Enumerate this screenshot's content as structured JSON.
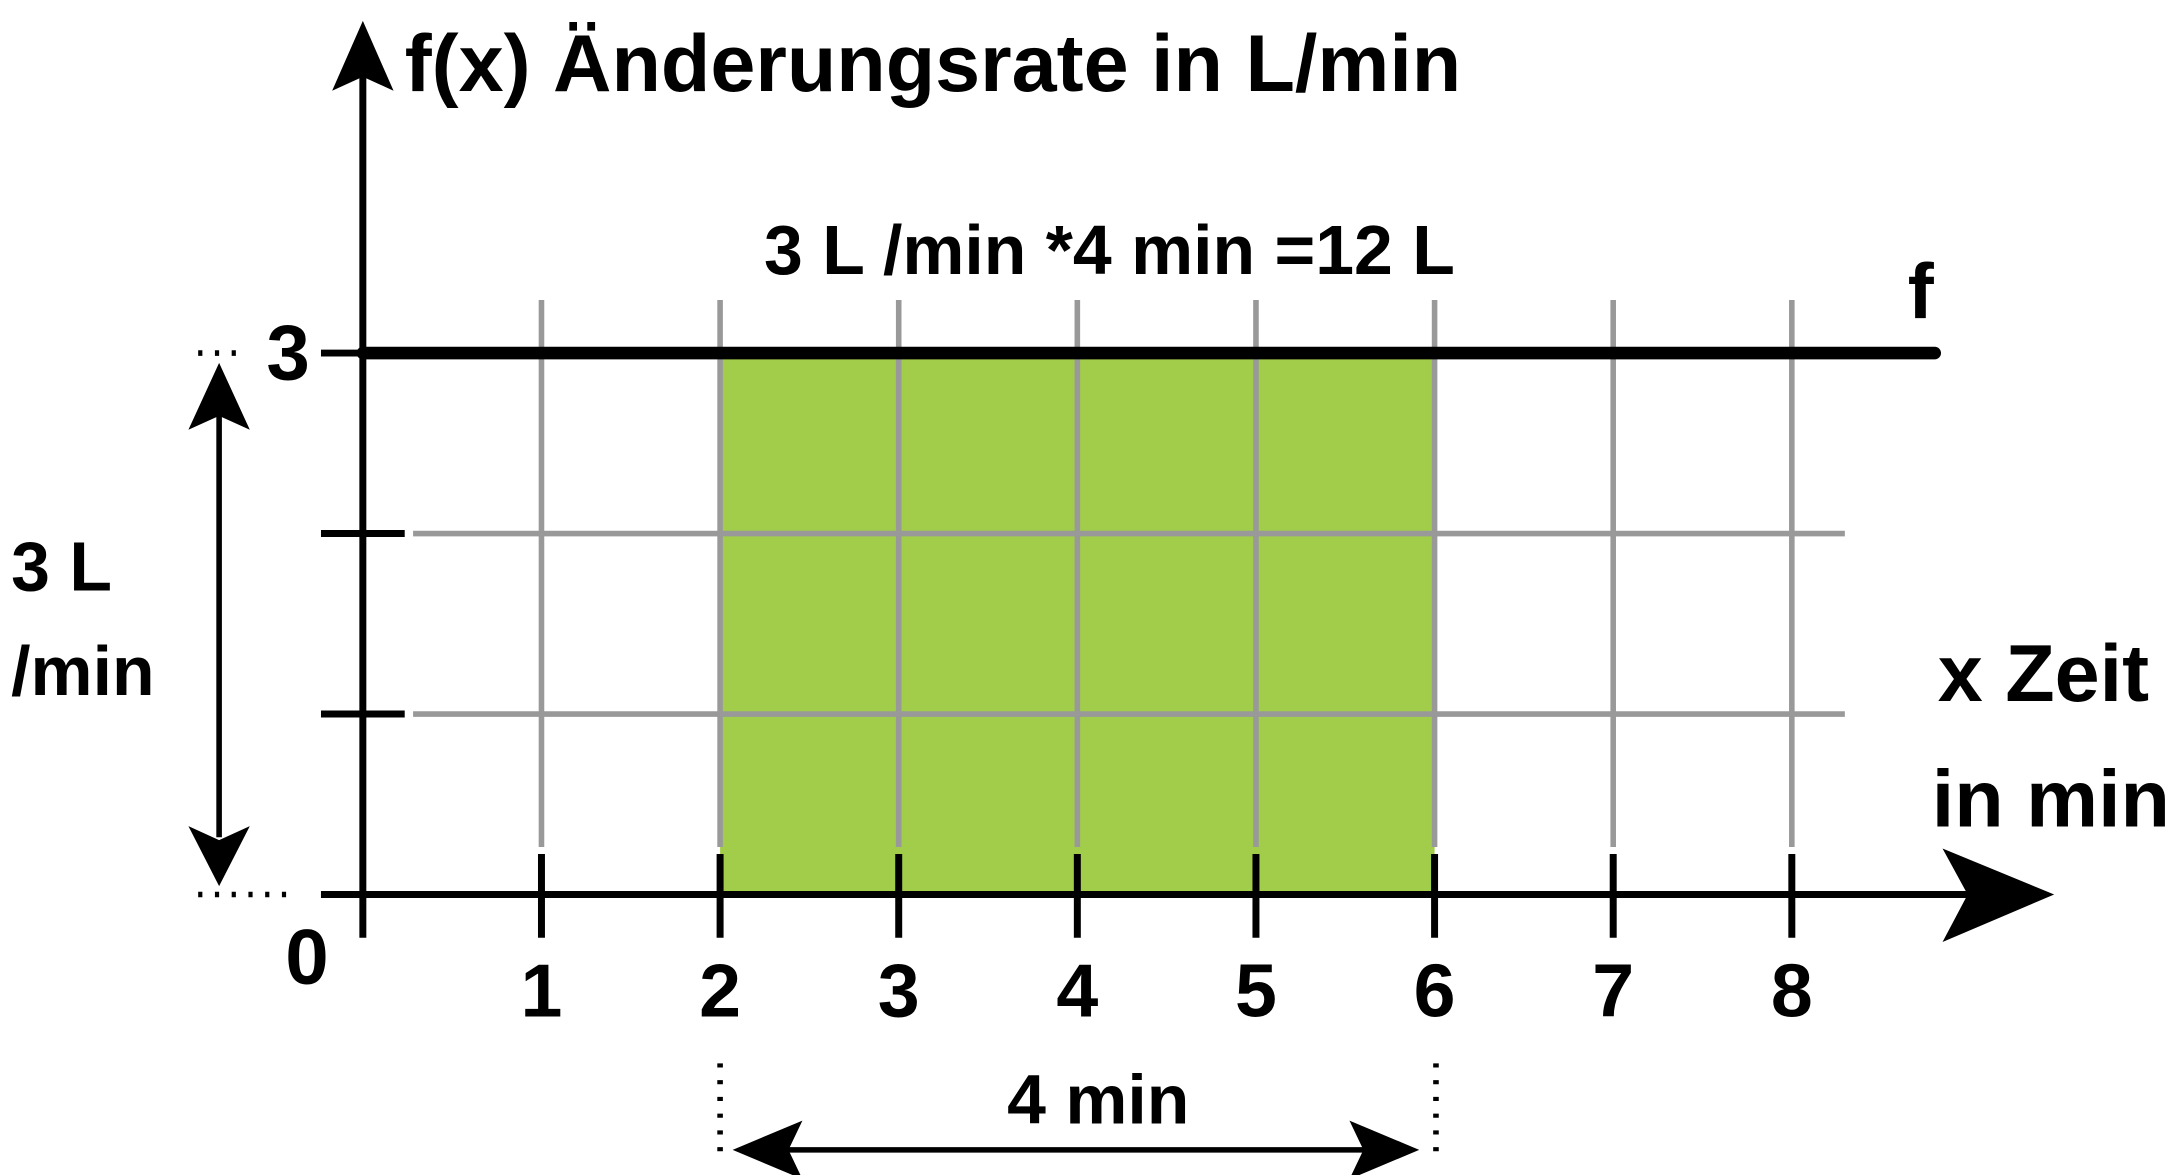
{
  "chart_data": {
    "type": "line",
    "ylabel": "f(x) Änderungsrate in L/min",
    "xlabel": [
      "x Zeit",
      "in min"
    ],
    "series": [
      {
        "name": "f",
        "color": "#000000",
        "x": [
          0,
          8.8
        ],
        "values": [
          3,
          3
        ]
      }
    ],
    "area": {
      "x": [
        2,
        6
      ],
      "color": "#a1cd4a"
    },
    "xlim": [
      0,
      9.45
    ],
    "ylim": [
      0,
      4.9
    ],
    "xticks": [
      1,
      2,
      3,
      4,
      5,
      6,
      7,
      8
    ],
    "yticks": [
      0,
      3
    ],
    "yminor": [
      1,
      2
    ],
    "grid": true,
    "grid_color": "#999999",
    "annotations": {
      "product": "3 L /min *4 min =12 L",
      "width": "4 min",
      "height": [
        "3 L",
        "/min"
      ]
    }
  }
}
